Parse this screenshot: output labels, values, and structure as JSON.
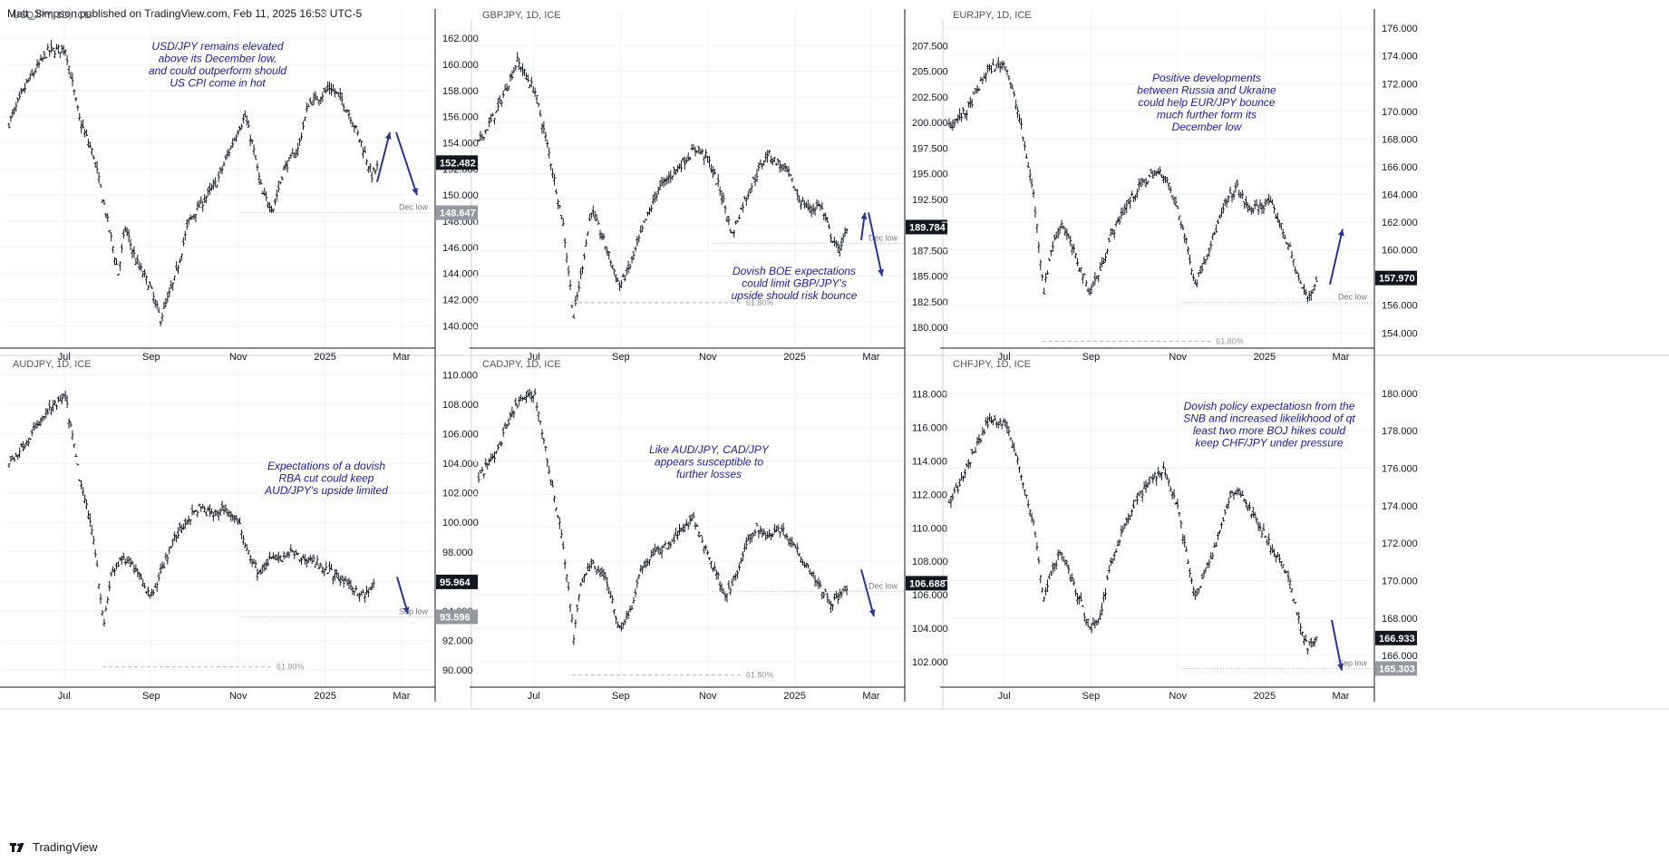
{
  "header": {
    "text": "Matt_Simpson published on TradingView.com, Feb 11, 2025 16:53 UTC-5"
  },
  "footer": {
    "brand": "TradingView"
  },
  "colors": {
    "bar": "#131722",
    "arrow": "#283593",
    "note": "#1a1aa6",
    "last_bg": "#131722",
    "ref_bg": "#9598a1",
    "grid": "#f0f3fa",
    "ref_line": "#b2b5be"
  },
  "chart_data": [
    {
      "type": "ohlc",
      "symbol": "USDJPY",
      "title": "USDJPY, 1D, ICE",
      "ylim": [
        138.7,
        163.4
      ],
      "yticks": [
        162,
        160,
        158,
        156,
        154,
        152,
        150,
        148,
        146,
        144,
        142,
        140
      ],
      "ytick_labels": [
        "162.000",
        "160.000",
        "158.000",
        "156.000",
        "154.000",
        "152.000",
        "150.000",
        "148.000",
        "146.000",
        "144.000",
        "142.000",
        "140.000"
      ],
      "xlabels": [
        "Jul",
        "Sep",
        "Nov",
        "2025",
        "Mar"
      ],
      "path": [
        [
          0,
          155.5
        ],
        [
          10,
          158.5
        ],
        [
          22,
          161
        ],
        [
          32,
          161.2
        ],
        [
          40,
          155.8
        ],
        [
          48,
          153
        ],
        [
          56,
          148
        ],
        [
          62,
          144
        ],
        [
          66,
          147.5
        ],
        [
          72,
          145
        ],
        [
          80,
          143
        ],
        [
          86,
          140.5
        ],
        [
          94,
          143.5
        ],
        [
          102,
          148
        ],
        [
          110,
          149.5
        ],
        [
          118,
          151
        ],
        [
          124,
          153
        ],
        [
          130,
          155
        ],
        [
          134,
          156
        ],
        [
          138,
          154
        ],
        [
          144,
          150
        ],
        [
          150,
          149
        ],
        [
          156,
          152
        ],
        [
          164,
          153.5
        ],
        [
          170,
          157
        ],
        [
          176,
          157.5
        ],
        [
          182,
          158.2
        ],
        [
          188,
          157.5
        ],
        [
          194,
          156
        ],
        [
          200,
          154
        ],
        [
          206,
          151.5
        ],
        [
          210,
          152.3
        ]
      ],
      "last": {
        "value": 152.482,
        "label": "152.482"
      },
      "ref": {
        "value": 148.647,
        "label": "148.647",
        "name": "Dec low"
      },
      "fib": null,
      "note": [
        "USD/JPY remains elevated",
        "above its December low,",
        "and could outperform should",
        "US CPI come in hot"
      ],
      "arrows": [
        [
          [
            416,
            151.0
          ],
          [
            430,
            154.8
          ]
        ],
        [
          [
            437,
            154.8
          ],
          [
            460,
            150.0
          ]
        ]
      ]
    },
    {
      "type": "ohlc",
      "symbol": "GBPJPY",
      "title": "GBPJPY, 1D, ICE",
      "ylim": [
        178.5,
        210.0
      ],
      "yticks": [
        207.5,
        205,
        202.5,
        200,
        197.5,
        195,
        192.5,
        190,
        187.5,
        185,
        182.5,
        180
      ],
      "ytick_labels": [
        "207.500",
        "205.000",
        "202.500",
        "200.000",
        "197.500",
        "195.000",
        "192.500",
        "190.000",
        "187.500",
        "185.000",
        "182.500",
        "180.000"
      ],
      "xlabels": [
        "Jul",
        "Sep",
        "Nov",
        "2025",
        "Mar"
      ],
      "path": [
        [
          0,
          198
        ],
        [
          10,
          201
        ],
        [
          22,
          206
        ],
        [
          32,
          203
        ],
        [
          40,
          197
        ],
        [
          48,
          190
        ],
        [
          54,
          181
        ],
        [
          58,
          185
        ],
        [
          64,
          191.5
        ],
        [
          72,
          188
        ],
        [
          80,
          184
        ],
        [
          86,
          186
        ],
        [
          94,
          190
        ],
        [
          102,
          193.5
        ],
        [
          110,
          195
        ],
        [
          118,
          196.5
        ],
        [
          124,
          197.5
        ],
        [
          130,
          196.5
        ],
        [
          138,
          193
        ],
        [
          144,
          189
        ],
        [
          150,
          192
        ],
        [
          158,
          195
        ],
        [
          164,
          197
        ],
        [
          170,
          196
        ],
        [
          176,
          195
        ],
        [
          182,
          192.5
        ],
        [
          188,
          191.5
        ],
        [
          194,
          192
        ],
        [
          200,
          189
        ],
        [
          204,
          187.5
        ],
        [
          210,
          189.7
        ]
      ],
      "last": {
        "value": 189.784,
        "label": "189.784"
      },
      "ref": {
        "value": 188.2,
        "label": "",
        "name": "Dec low"
      },
      "fib": {
        "value": 182.4,
        "label": "61.80%"
      },
      "note": [
        "Dovish BOE expectations",
        "could limit GBP/JPY's",
        "upside should risk bounce"
      ],
      "arrows": [
        [
          [
            950,
            188.5
          ],
          [
            954,
            191.2
          ]
        ],
        [
          [
            958,
            191.2
          ],
          [
            973,
            185.0
          ]
        ]
      ]
    },
    {
      "type": "ohlc",
      "symbol": "EURJPY",
      "title": "EURJPY, 1D, ICE",
      "ylim": [
        153.3,
        176.6
      ],
      "yticks": [
        176,
        174,
        172,
        170,
        168,
        166,
        164,
        162,
        160,
        158,
        156,
        154
      ],
      "ytick_labels": [
        "176.000",
        "174.000",
        "172.000",
        "170.000",
        "168.000",
        "166.000",
        "164.000",
        "162.000",
        "160.000",
        "158.000",
        "156.000",
        "154.000"
      ],
      "xlabels": [
        "Jul",
        "Sep",
        "Nov",
        "2025",
        "Mar"
      ],
      "path": [
        [
          0,
          169
        ],
        [
          10,
          170
        ],
        [
          22,
          173
        ],
        [
          32,
          173.5
        ],
        [
          40,
          169.5
        ],
        [
          48,
          164
        ],
        [
          54,
          157
        ],
        [
          58,
          160
        ],
        [
          64,
          162
        ],
        [
          72,
          159.5
        ],
        [
          80,
          157
        ],
        [
          86,
          158.5
        ],
        [
          92,
          161
        ],
        [
          100,
          163
        ],
        [
          108,
          164.5
        ],
        [
          116,
          165.5
        ],
        [
          122,
          165.5
        ],
        [
          130,
          163
        ],
        [
          136,
          160
        ],
        [
          140,
          157.5
        ],
        [
          146,
          159.5
        ],
        [
          152,
          161.5
        ],
        [
          158,
          163.5
        ],
        [
          164,
          164.5
        ],
        [
          170,
          163
        ],
        [
          176,
          163
        ],
        [
          182,
          163.5
        ],
        [
          188,
          162
        ],
        [
          194,
          160
        ],
        [
          200,
          157.5
        ],
        [
          204,
          156.5
        ],
        [
          210,
          158
        ]
      ],
      "last": {
        "value": 157.97,
        "label": "157.970"
      },
      "ref": {
        "value": 156.2,
        "label": "",
        "name": "Dec low"
      },
      "fib": {
        "value": 153.4,
        "label": "61.80%"
      },
      "note": [
        "Positive developments",
        "between Russia and Ukraine",
        "could help EUR/JPY bounce",
        "much further form its",
        "December low"
      ],
      "arrows": [
        [
          [
            1467,
            157.5
          ],
          [
            1481,
            161.5
          ]
        ]
      ]
    },
    {
      "type": "ohlc",
      "symbol": "AUDJPY",
      "title": "AUDJPY, 1D, ICE",
      "ylim": [
        89.2,
        110.4
      ],
      "yticks": [
        110,
        108,
        106,
        104,
        102,
        100,
        98,
        96,
        94,
        92,
        90
      ],
      "ytick_labels": [
        "110.000",
        "108.000",
        "106.000",
        "104.000",
        "102.000",
        "100.000",
        "98.000",
        "96.000",
        "94.000",
        "92.000",
        "90.000"
      ],
      "xlabels": [
        "Jul",
        "Sep",
        "Nov",
        "2025",
        "Mar"
      ],
      "path": [
        [
          0,
          104
        ],
        [
          10,
          105.5
        ],
        [
          22,
          107.5
        ],
        [
          32,
          108.5
        ],
        [
          40,
          103
        ],
        [
          48,
          99
        ],
        [
          54,
          93
        ],
        [
          58,
          96.5
        ],
        [
          64,
          97.5
        ],
        [
          72,
          97
        ],
        [
          80,
          95
        ],
        [
          86,
          96.5
        ],
        [
          92,
          98.5
        ],
        [
          100,
          100
        ],
        [
          108,
          101
        ],
        [
          116,
          100.5
        ],
        [
          122,
          101
        ],
        [
          130,
          100
        ],
        [
          136,
          98
        ],
        [
          142,
          96.5
        ],
        [
          148,
          97.5
        ],
        [
          154,
          97.5
        ],
        [
          160,
          98
        ],
        [
          166,
          97.5
        ],
        [
          172,
          97.5
        ],
        [
          178,
          97
        ],
        [
          184,
          96.5
        ],
        [
          190,
          96
        ],
        [
          196,
          95.5
        ],
        [
          202,
          95
        ],
        [
          208,
          95.9
        ]
      ],
      "last": {
        "value": 95.964,
        "label": "95.964"
      },
      "ref": {
        "value": 93.596,
        "label": "93.596",
        "name": "Sep low"
      },
      "fib": {
        "value": 90.2,
        "label": "61.80%"
      },
      "note": [
        "Expectations of a dovish",
        "RBA cut could keep",
        "AUD/JPY's upside limited"
      ],
      "arrows": [
        [
          [
            438,
            96.3
          ],
          [
            450,
            93.8
          ]
        ]
      ]
    },
    {
      "type": "ohlc",
      "symbol": "CADJPY",
      "title": "CADJPY, 1D, ICE",
      "ylim": [
        100.8,
        119.5
      ],
      "yticks": [
        118,
        116,
        114,
        112,
        110,
        108,
        106,
        104,
        102
      ],
      "ytick_labels": [
        "118.000",
        "116.000",
        "114.000",
        "112.000",
        "110.000",
        "108.000",
        "106.000",
        "104.000",
        "102.000"
      ],
      "xlabels": [
        "Jul",
        "Sep",
        "Nov",
        "2025",
        "Mar"
      ],
      "path": [
        [
          0,
          113
        ],
        [
          10,
          114.5
        ],
        [
          22,
          117.5
        ],
        [
          32,
          118
        ],
        [
          40,
          113.5
        ],
        [
          48,
          109
        ],
        [
          54,
          103.5
        ],
        [
          58,
          106.5
        ],
        [
          64,
          108
        ],
        [
          72,
          107
        ],
        [
          80,
          104
        ],
        [
          86,
          105
        ],
        [
          92,
          107.5
        ],
        [
          100,
          108.5
        ],
        [
          108,
          109
        ],
        [
          116,
          110
        ],
        [
          122,
          110.5
        ],
        [
          130,
          108.5
        ],
        [
          136,
          107
        ],
        [
          140,
          106
        ],
        [
          146,
          107
        ],
        [
          152,
          109
        ],
        [
          158,
          110
        ],
        [
          164,
          109.5
        ],
        [
          170,
          110
        ],
        [
          176,
          109.5
        ],
        [
          182,
          108.5
        ],
        [
          188,
          107.5
        ],
        [
          194,
          106.5
        ],
        [
          200,
          105.5
        ],
        [
          206,
          106
        ],
        [
          210,
          106.7
        ]
      ],
      "last": {
        "value": 106.688,
        "label": "106.688"
      },
      "ref": {
        "value": 106.2,
        "label": "",
        "name": "Dec low"
      },
      "fib": {
        "value": 101.2,
        "label": "61.80%"
      },
      "note": [
        "Like AUD/JPY, CAD/JPY",
        "appears susceptible to",
        "further losses"
      ],
      "arrows": [
        [
          [
            950,
            107.5
          ],
          [
            964,
            104.7
          ]
        ]
      ]
    },
    {
      "type": "ohlc",
      "symbol": "CHFJPY",
      "title": "CHFJPY, 1D, ICE",
      "ylim": [
        164.6,
        181.3
      ],
      "yticks": [
        180,
        178,
        176,
        174,
        172,
        170,
        168,
        166
      ],
      "ytick_labels": [
        "180.000",
        "178.000",
        "176.000",
        "174.000",
        "172.000",
        "170.000",
        "168.000",
        "166.000"
      ],
      "xlabels": [
        "Jul",
        "Sep",
        "Nov",
        "2025",
        "Mar"
      ],
      "path": [
        [
          0,
          174
        ],
        [
          10,
          176
        ],
        [
          22,
          178.5
        ],
        [
          32,
          178.5
        ],
        [
          40,
          176
        ],
        [
          48,
          173
        ],
        [
          54,
          169
        ],
        [
          58,
          170.5
        ],
        [
          64,
          171.5
        ],
        [
          72,
          169.5
        ],
        [
          80,
          167.5
        ],
        [
          86,
          168
        ],
        [
          92,
          171
        ],
        [
          100,
          173
        ],
        [
          108,
          174.5
        ],
        [
          116,
          175.5
        ],
        [
          122,
          176
        ],
        [
          130,
          174
        ],
        [
          136,
          171
        ],
        [
          140,
          169
        ],
        [
          146,
          170.5
        ],
        [
          152,
          172
        ],
        [
          158,
          174
        ],
        [
          164,
          175
        ],
        [
          170,
          174
        ],
        [
          176,
          173
        ],
        [
          182,
          172
        ],
        [
          188,
          171
        ],
        [
          194,
          170
        ],
        [
          200,
          167.5
        ],
        [
          204,
          166.5
        ],
        [
          210,
          166.9
        ]
      ],
      "last": {
        "value": 166.933,
        "label": "166.933"
      },
      "ref": {
        "value": 165.303,
        "label": "165.303",
        "name": "Sep low"
      },
      "fib": null,
      "note": [
        "Dovish policy expectatiosn from the",
        "SNB and increased likelikhood of qt",
        "least two more BOJ hikes could",
        "keep CHF/JPY under pressure"
      ],
      "arrows": [
        [
          [
            1469,
            167.9
          ],
          [
            1480,
            165.2
          ]
        ]
      ]
    }
  ]
}
